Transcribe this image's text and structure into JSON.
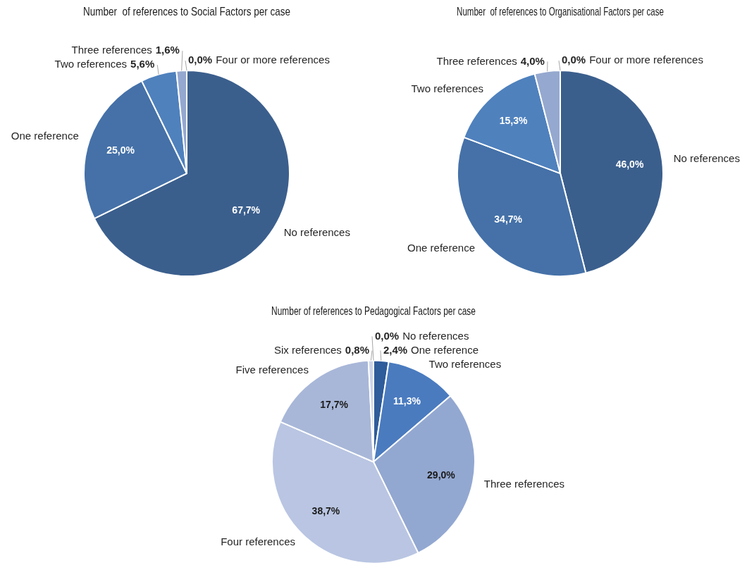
{
  "chart_data": [
    {
      "type": "pie",
      "title": "Number  of references to Social Factors per case",
      "categories": [
        "No references",
        "One reference",
        "Two references",
        "Three references",
        "Four or more references"
      ],
      "values": [
        67.7,
        25.0,
        5.6,
        1.6,
        0.0
      ],
      "value_labels": [
        "67,7%",
        "25,0%",
        "5,6%",
        "1,6%",
        "0,0%"
      ],
      "colors": [
        "#3b5f8d",
        "#4571a8",
        "#4f81bd",
        "#95a8cf",
        "#b8c4e0"
      ]
    },
    {
      "type": "pie",
      "title": "Number  of references to Organisational Factors per case",
      "categories": [
        "No references",
        "One reference",
        "Two references",
        "Three references",
        "Four or more references"
      ],
      "values": [
        46.0,
        34.7,
        15.3,
        4.0,
        0.0
      ],
      "value_labels": [
        "46,0%",
        "34,7%",
        "15,3%",
        "4,0%",
        "0,0%"
      ],
      "colors": [
        "#3b5f8d",
        "#4571a8",
        "#4f81bd",
        "#95a8cf",
        "#b8c4e0"
      ]
    },
    {
      "type": "pie",
      "title": "Number of references to Pedagogical Factors per case",
      "categories": [
        "No references",
        "One reference",
        "Two references",
        "Three references",
        "Four references",
        "Five references",
        "Six references"
      ],
      "values": [
        0.0,
        2.4,
        11.3,
        29.0,
        38.7,
        17.7,
        0.8
      ],
      "value_labels": [
        "0,0%",
        "2,4%",
        "11,3%",
        "29,0%",
        "38,7%",
        "17,7%",
        "0,8%"
      ],
      "colors": [
        "#24477a",
        "#2f5c9a",
        "#4a7bbf",
        "#93a8d1",
        "#b9c5e2",
        "#a8b7d8",
        "#cbd4ea"
      ]
    }
  ]
}
